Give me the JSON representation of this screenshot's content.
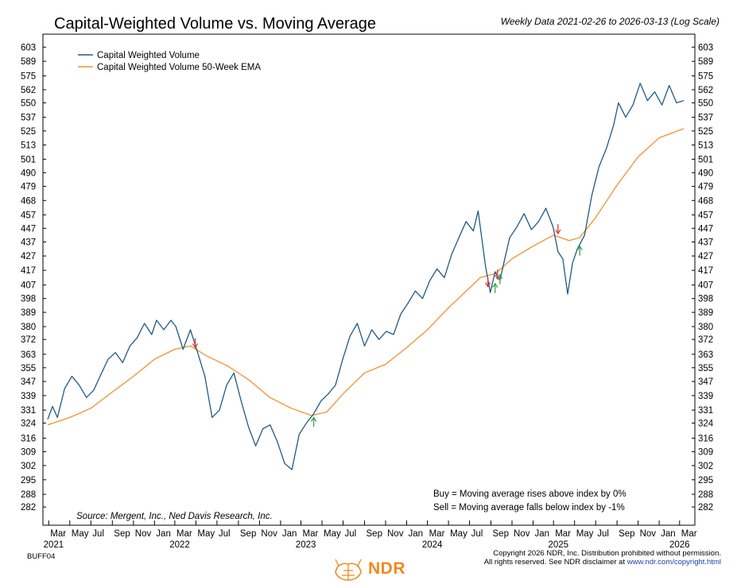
{
  "chart_data": {
    "type": "line",
    "title": "Capital-Weighted Volume vs. Moving Average",
    "subtitle": "Weekly Data 2021-02-26 to 2026-03-13 (Log Scale)",
    "scale": "log",
    "ylim": [
      278,
      608
    ],
    "yticks": [
      603,
      589,
      575,
      562,
      550,
      537,
      525,
      513,
      501,
      490,
      479,
      468,
      457,
      447,
      437,
      427,
      417,
      407,
      398,
      389,
      380,
      372,
      363,
      355,
      347,
      339,
      331,
      324,
      316,
      309,
      302,
      295,
      288,
      282
    ],
    "xlim": [
      "2021-02-26",
      "2026-03-13"
    ],
    "x_month_ticks": [
      {
        "date": "2021-03-01",
        "label": "Mar"
      },
      {
        "date": "2021-05-01",
        "label": "May"
      },
      {
        "date": "2021-07-01",
        "label": "Jul"
      },
      {
        "date": "2021-09-01",
        "label": "Sep"
      },
      {
        "date": "2021-11-01",
        "label": "Nov"
      },
      {
        "date": "2022-01-01",
        "label": "Jan"
      },
      {
        "date": "2022-03-01",
        "label": "Mar"
      },
      {
        "date": "2022-05-01",
        "label": "May"
      },
      {
        "date": "2022-07-01",
        "label": "Jul"
      },
      {
        "date": "2022-09-01",
        "label": "Sep"
      },
      {
        "date": "2022-11-01",
        "label": "Nov"
      },
      {
        "date": "2023-01-01",
        "label": "Jan"
      },
      {
        "date": "2023-03-01",
        "label": "Mar"
      },
      {
        "date": "2023-05-01",
        "label": "May"
      },
      {
        "date": "2023-07-01",
        "label": "Jul"
      },
      {
        "date": "2023-09-01",
        "label": "Sep"
      },
      {
        "date": "2023-11-01",
        "label": "Nov"
      },
      {
        "date": "2024-01-01",
        "label": "Jan"
      },
      {
        "date": "2024-03-01",
        "label": "Mar"
      },
      {
        "date": "2024-05-01",
        "label": "May"
      },
      {
        "date": "2024-07-01",
        "label": "Jul"
      },
      {
        "date": "2024-09-01",
        "label": "Sep"
      },
      {
        "date": "2024-11-01",
        "label": "Nov"
      },
      {
        "date": "2025-01-01",
        "label": "Jan"
      },
      {
        "date": "2025-03-01",
        "label": "Mar"
      },
      {
        "date": "2025-05-01",
        "label": "May"
      },
      {
        "date": "2025-07-01",
        "label": "Jul"
      },
      {
        "date": "2025-09-01",
        "label": "Sep"
      },
      {
        "date": "2025-11-01",
        "label": "Nov"
      },
      {
        "date": "2026-01-01",
        "label": "Jan"
      },
      {
        "date": "2026-03-01",
        "label": "Mar"
      }
    ],
    "x_year_labels": [
      {
        "date": "2021-03-15",
        "label": "2021"
      },
      {
        "date": "2022-03-15",
        "label": "2022"
      },
      {
        "date": "2023-03-15",
        "label": "2023"
      },
      {
        "date": "2024-03-15",
        "label": "2024"
      },
      {
        "date": "2025-03-15",
        "label": "2025"
      },
      {
        "date": "2026-03-01",
        "label": "2026"
      }
    ],
    "series": [
      {
        "name": "Capital Weighted Volume",
        "color": "#1f5b87",
        "points": [
          [
            "2021-02-26",
            326
          ],
          [
            "2021-03-12",
            333
          ],
          [
            "2021-03-26",
            327
          ],
          [
            "2021-04-16",
            343
          ],
          [
            "2021-05-07",
            350
          ],
          [
            "2021-05-28",
            345
          ],
          [
            "2021-06-18",
            338
          ],
          [
            "2021-07-09",
            342
          ],
          [
            "2021-07-30",
            351
          ],
          [
            "2021-08-20",
            360
          ],
          [
            "2021-09-10",
            364
          ],
          [
            "2021-10-01",
            358
          ],
          [
            "2021-10-22",
            368
          ],
          [
            "2021-11-12",
            373
          ],
          [
            "2021-12-03",
            382
          ],
          [
            "2021-12-24",
            375
          ],
          [
            "2022-01-07",
            384
          ],
          [
            "2022-01-28",
            378
          ],
          [
            "2022-02-18",
            384
          ],
          [
            "2022-03-04",
            380
          ],
          [
            "2022-03-25",
            366
          ],
          [
            "2022-04-15",
            378
          ],
          [
            "2022-05-06",
            364
          ],
          [
            "2022-05-27",
            350
          ],
          [
            "2022-06-17",
            327
          ],
          [
            "2022-07-08",
            331
          ],
          [
            "2022-07-29",
            345
          ],
          [
            "2022-08-19",
            352
          ],
          [
            "2022-09-09",
            336
          ],
          [
            "2022-09-30",
            322
          ],
          [
            "2022-10-21",
            312
          ],
          [
            "2022-11-11",
            321
          ],
          [
            "2022-12-02",
            323
          ],
          [
            "2022-12-23",
            314
          ],
          [
            "2023-01-13",
            303
          ],
          [
            "2023-02-03",
            300
          ],
          [
            "2023-02-24",
            318
          ],
          [
            "2023-03-17",
            324
          ],
          [
            "2023-04-07",
            329
          ],
          [
            "2023-04-28",
            336
          ],
          [
            "2023-05-19",
            340
          ],
          [
            "2023-06-09",
            345
          ],
          [
            "2023-06-30",
            360
          ],
          [
            "2023-07-21",
            374
          ],
          [
            "2023-08-11",
            382
          ],
          [
            "2023-09-01",
            368
          ],
          [
            "2023-09-22",
            378
          ],
          [
            "2023-10-13",
            372
          ],
          [
            "2023-11-03",
            377
          ],
          [
            "2023-11-24",
            375
          ],
          [
            "2023-12-15",
            388
          ],
          [
            "2024-01-05",
            395
          ],
          [
            "2024-01-26",
            403
          ],
          [
            "2024-02-16",
            398
          ],
          [
            "2024-03-08",
            410
          ],
          [
            "2024-03-29",
            418
          ],
          [
            "2024-04-19",
            412
          ],
          [
            "2024-05-10",
            428
          ],
          [
            "2024-05-31",
            440
          ],
          [
            "2024-06-21",
            452
          ],
          [
            "2024-07-12",
            445
          ],
          [
            "2024-07-26",
            460
          ],
          [
            "2024-08-16",
            420
          ],
          [
            "2024-08-30",
            402
          ],
          [
            "2024-09-13",
            416
          ],
          [
            "2024-09-27",
            410
          ],
          [
            "2024-10-11",
            425
          ],
          [
            "2024-10-25",
            440
          ],
          [
            "2024-11-15",
            448
          ],
          [
            "2024-12-06",
            458
          ],
          [
            "2024-12-27",
            446
          ],
          [
            "2025-01-17",
            452
          ],
          [
            "2025-02-07",
            462
          ],
          [
            "2025-02-28",
            448
          ],
          [
            "2025-03-14",
            430
          ],
          [
            "2025-03-28",
            425
          ],
          [
            "2025-04-11",
            401
          ],
          [
            "2025-04-25",
            422
          ],
          [
            "2025-05-09",
            432
          ],
          [
            "2025-05-30",
            442
          ],
          [
            "2025-06-20",
            472
          ],
          [
            "2025-07-11",
            495
          ],
          [
            "2025-08-01",
            510
          ],
          [
            "2025-08-22",
            530
          ],
          [
            "2025-09-05",
            550
          ],
          [
            "2025-09-26",
            537
          ],
          [
            "2025-10-17",
            548
          ],
          [
            "2025-11-07",
            568
          ],
          [
            "2025-11-28",
            552
          ],
          [
            "2025-12-19",
            560
          ],
          [
            "2026-01-09",
            548
          ],
          [
            "2026-01-30",
            566
          ],
          [
            "2026-02-20",
            550
          ],
          [
            "2026-03-13",
            552
          ]
        ]
      },
      {
        "name": "Capital Weighted Volume 50-Week EMA",
        "color": "#f0922e",
        "points": [
          [
            "2021-02-26",
            323
          ],
          [
            "2021-05-01",
            327
          ],
          [
            "2021-07-01",
            332
          ],
          [
            "2021-09-01",
            341
          ],
          [
            "2021-11-01",
            350
          ],
          [
            "2022-01-01",
            360
          ],
          [
            "2022-03-01",
            366
          ],
          [
            "2022-04-15",
            368
          ],
          [
            "2022-06-01",
            362
          ],
          [
            "2022-08-01",
            356
          ],
          [
            "2022-10-01",
            348
          ],
          [
            "2022-12-01",
            338
          ],
          [
            "2023-02-01",
            332
          ],
          [
            "2023-04-01",
            328
          ],
          [
            "2023-05-15",
            330
          ],
          [
            "2023-07-01",
            340
          ],
          [
            "2023-09-01",
            352
          ],
          [
            "2023-11-01",
            357
          ],
          [
            "2024-01-01",
            367
          ],
          [
            "2024-03-01",
            378
          ],
          [
            "2024-05-01",
            392
          ],
          [
            "2024-07-01",
            405
          ],
          [
            "2024-08-01",
            412
          ],
          [
            "2024-09-15",
            415
          ],
          [
            "2024-11-01",
            425
          ],
          [
            "2025-01-01",
            434
          ],
          [
            "2025-03-01",
            442
          ],
          [
            "2025-04-15",
            438
          ],
          [
            "2025-05-15",
            440
          ],
          [
            "2025-07-01",
            455
          ],
          [
            "2025-09-01",
            480
          ],
          [
            "2025-11-01",
            503
          ],
          [
            "2026-01-01",
            519
          ],
          [
            "2026-03-13",
            527
          ]
        ]
      }
    ],
    "signals": [
      {
        "type": "sell",
        "date": "2022-04-29",
        "value": 367
      },
      {
        "type": "buy",
        "date": "2023-04-07",
        "value": 327
      },
      {
        "type": "sell",
        "date": "2024-08-23",
        "value": 406
      },
      {
        "type": "buy",
        "date": "2024-09-13",
        "value": 408
      },
      {
        "type": "sell",
        "date": "2024-09-20",
        "value": 411
      },
      {
        "type": "buy",
        "date": "2024-09-27",
        "value": 414
      },
      {
        "type": "sell",
        "date": "2025-03-14",
        "value": 443
      },
      {
        "type": "buy",
        "date": "2025-05-16",
        "value": 434
      }
    ],
    "legend_position": "top-left",
    "buy_color": "#3aa64a",
    "sell_color": "#e03a2e",
    "notes": {
      "buy": "Buy = Moving average rises above index by 0%",
      "sell": "Sell = Moving average falls below index by -1%"
    },
    "source": "Source:  Mergent, Inc., Ned Davis Research, Inc."
  },
  "footer": {
    "code": "BUFF04",
    "copyright_line1": "Copyright 2026 NDR, Inc. Distribution prohibited without permission.",
    "copyright_line2_prefix": "All rights reserved. See NDR disclaimer at ",
    "copyright_link": "www.ndr.com/copyright.html",
    "logo_text": "NDR"
  }
}
